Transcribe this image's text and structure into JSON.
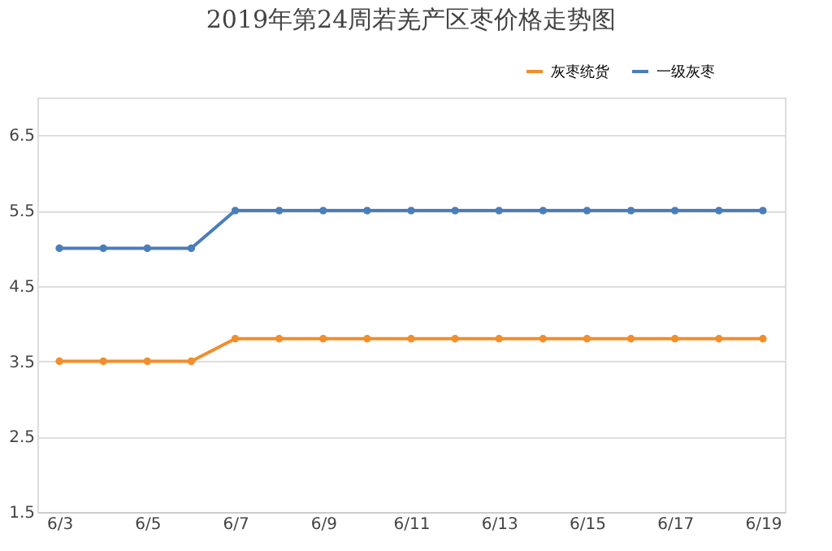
{
  "chart_data": {
    "type": "line",
    "title": "2019年第24周若羌产区枣价格走势图",
    "categories": [
      "6/3",
      null,
      "6/5",
      null,
      "6/7",
      null,
      "6/9",
      null,
      "6/11",
      null,
      "6/13",
      null,
      "6/15",
      null,
      "6/17",
      null,
      "6/19"
    ],
    "series": [
      {
        "name": "灰枣统货",
        "color": "#f28e2b",
        "values": [
          3.5,
          3.5,
          3.5,
          3.5,
          3.8,
          3.8,
          3.8,
          3.8,
          3.8,
          3.8,
          3.8,
          3.8,
          3.8,
          3.8,
          3.8,
          3.8,
          3.8
        ]
      },
      {
        "name": "一级灰枣",
        "color": "#4a7ebb",
        "values": [
          5.0,
          5.0,
          5.0,
          5.0,
          5.5,
          5.5,
          5.5,
          5.5,
          5.5,
          5.5,
          5.5,
          5.5,
          5.5,
          5.5,
          5.5,
          5.5,
          5.5
        ]
      }
    ],
    "ylim": [
      1.5,
      7.0
    ],
    "yticks": [
      1.5,
      2.5,
      3.5,
      4.5,
      5.5,
      6.5
    ],
    "grid": "y",
    "legend": "top right",
    "marker": "circle",
    "line_style": "solid"
  }
}
